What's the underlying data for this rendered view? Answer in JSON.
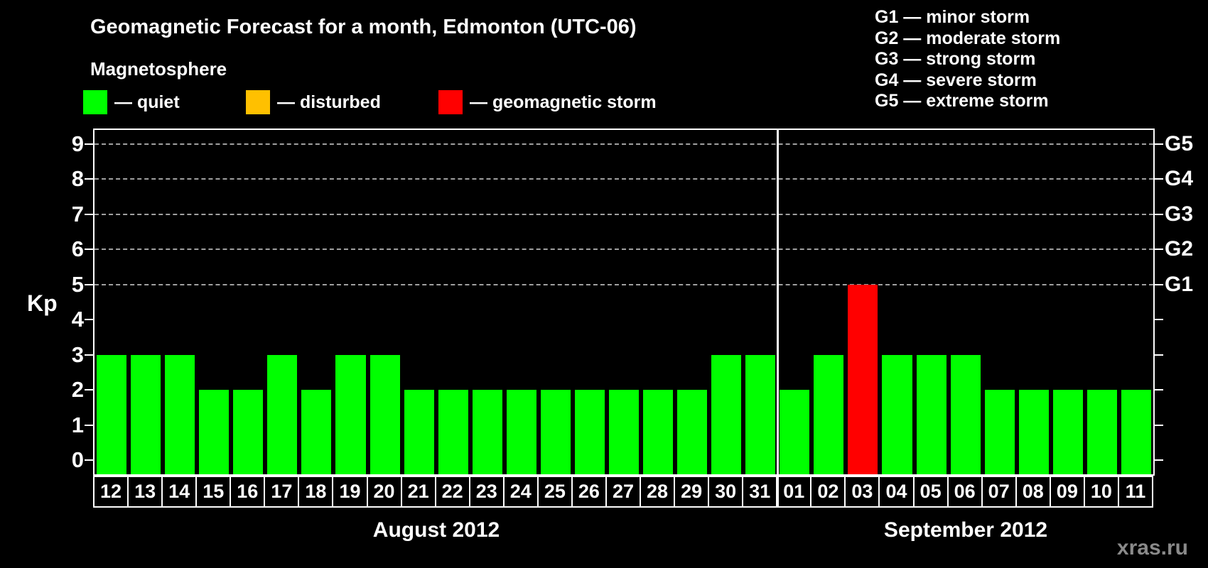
{
  "title": "Geomagnetic Forecast for a month, Edmonton (UTC-06)",
  "legend": {
    "heading": "Magnetosphere",
    "items": [
      {
        "name": "quiet",
        "label": "— quiet",
        "color": "#00ff00"
      },
      {
        "name": "disturbed",
        "label": "— disturbed",
        "color": "#ffc000"
      },
      {
        "name": "storm",
        "label": "— geomagnetic storm",
        "color": "#ff0000"
      }
    ]
  },
  "storm_scale_legend": {
    "items": [
      "G1 — minor storm",
      "G2 — moderate storm",
      "G3 — strong storm",
      "G4 — severe storm",
      "G5 — extreme storm"
    ]
  },
  "watermark": "xras.ru",
  "chart_data": {
    "type": "bar",
    "title": "Geomagnetic Forecast for a month, Edmonton (UTC-06)",
    "ylabel": "Kp",
    "ylim": [
      -0.4,
      9.4
    ],
    "yticks": [
      0,
      1,
      2,
      3,
      4,
      5,
      6,
      7,
      8,
      9
    ],
    "gridlines_at": [
      5,
      6,
      7,
      8,
      9
    ],
    "grid": "dashed-horizontal-at-storm-levels",
    "legend_position": "top",
    "right_axis": [
      {
        "kp": 5,
        "label": "G1"
      },
      {
        "kp": 6,
        "label": "G2"
      },
      {
        "kp": 7,
        "label": "G3"
      },
      {
        "kp": 8,
        "label": "G4"
      },
      {
        "kp": 9,
        "label": "G5"
      }
    ],
    "bar_colors": {
      "quiet": "#00ff00",
      "disturbed": "#ffc000",
      "storm": "#ff0000"
    },
    "months": [
      {
        "label": "August 2012",
        "days": [
          "12",
          "13",
          "14",
          "15",
          "16",
          "17",
          "18",
          "19",
          "20",
          "21",
          "22",
          "23",
          "24",
          "25",
          "26",
          "27",
          "28",
          "29",
          "30",
          "31"
        ],
        "values": [
          3,
          3,
          3,
          2,
          2,
          3,
          2,
          3,
          3,
          2,
          2,
          2,
          2,
          2,
          2,
          2,
          2,
          2,
          3,
          3
        ],
        "status": [
          "quiet",
          "quiet",
          "quiet",
          "quiet",
          "quiet",
          "quiet",
          "quiet",
          "quiet",
          "quiet",
          "quiet",
          "quiet",
          "quiet",
          "quiet",
          "quiet",
          "quiet",
          "quiet",
          "quiet",
          "quiet",
          "quiet",
          "quiet"
        ]
      },
      {
        "label": "September 2012",
        "days": [
          "01",
          "02",
          "03",
          "04",
          "05",
          "06",
          "07",
          "08",
          "09",
          "10",
          "11"
        ],
        "values": [
          2,
          3,
          5,
          3,
          3,
          3,
          2,
          2,
          2,
          2,
          2
        ],
        "status": [
          "quiet",
          "quiet",
          "storm",
          "quiet",
          "quiet",
          "quiet",
          "quiet",
          "quiet",
          "quiet",
          "quiet",
          "quiet"
        ]
      }
    ]
  }
}
